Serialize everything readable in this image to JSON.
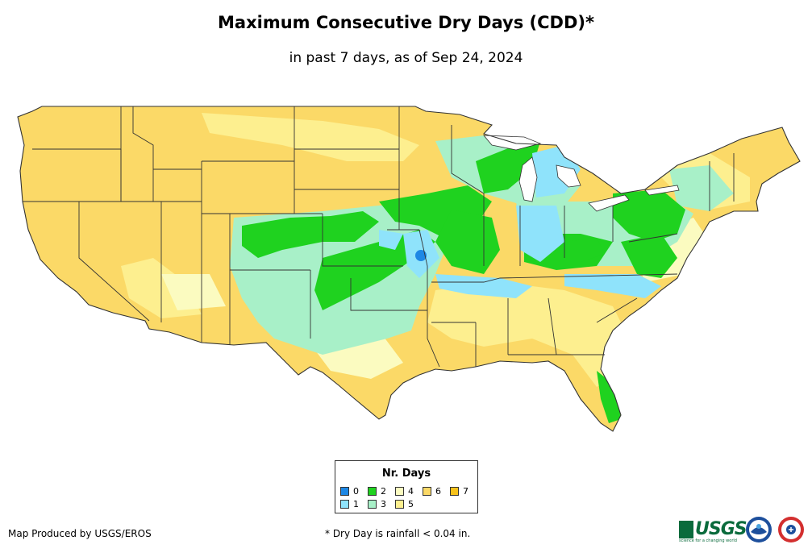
{
  "title": "Maximum Consecutive Dry Days (CDD)*",
  "subtitle": "in past 7 days, as of Sep 24, 2024",
  "legend": {
    "title": "Nr. Days",
    "items": [
      {
        "label": "0",
        "color": "#1e88e5"
      },
      {
        "label": "1",
        "color": "#8fe3fb"
      },
      {
        "label": "2",
        "color": "#1fd21f"
      },
      {
        "label": "3",
        "color": "#a8f0c8"
      },
      {
        "label": "4",
        "color": "#fbfbc0"
      },
      {
        "label": "5",
        "color": "#fdef8f"
      },
      {
        "label": "6",
        "color": "#fbd967"
      },
      {
        "label": "7",
        "color": "#f6c21b"
      }
    ]
  },
  "credit": "Map Produced by USGS/EROS",
  "footnote": "* Dry Day is rainfall < 0.04 in.",
  "logos": {
    "usgs": "USGS",
    "usgs_tagline": "science for a changing world",
    "noaa": "noaa-logo",
    "nws": "nws-logo"
  }
}
